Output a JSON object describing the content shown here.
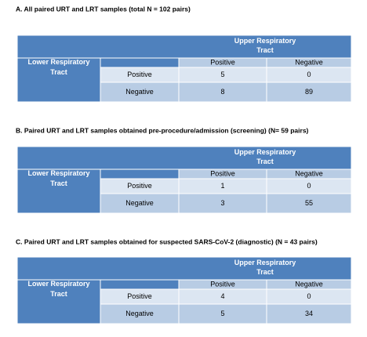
{
  "sections": [
    {
      "title": "A. All paired URT and LRT samples (total N = 102 pairs)",
      "row_header": "Lower Respiratory Tract",
      "col_header": "Upper Respiratory Tract",
      "col_labels": [
        "Positive",
        "Negative"
      ],
      "row_labels": [
        "Positive",
        "Negative"
      ],
      "cells": [
        [
          5,
          0
        ],
        [
          8,
          89
        ]
      ]
    },
    {
      "title": "B. Paired URT and LRT samples obtained pre-procedure/admission (screening) (N= 59 pairs)",
      "row_header": "Lower Respiratory Tract",
      "col_header": "Upper Respiratory Tract",
      "col_labels": [
        "Positive",
        "Negative"
      ],
      "row_labels": [
        "Positive",
        "Negative"
      ],
      "cells": [
        [
          1,
          0
        ],
        [
          3,
          55
        ]
      ]
    },
    {
      "title": "C. Paired URT and LRT samples obtained for suspected SARS-CoV-2 (diagnostic) (N = 43 pairs)",
      "row_header": "Lower Respiratory Tract",
      "col_header": "Upper Respiratory Tract",
      "col_labels": [
        "Positive",
        "Negative"
      ],
      "row_labels": [
        "Positive",
        "Negative"
      ],
      "cells": [
        [
          4,
          0
        ],
        [
          5,
          34
        ]
      ]
    }
  ]
}
